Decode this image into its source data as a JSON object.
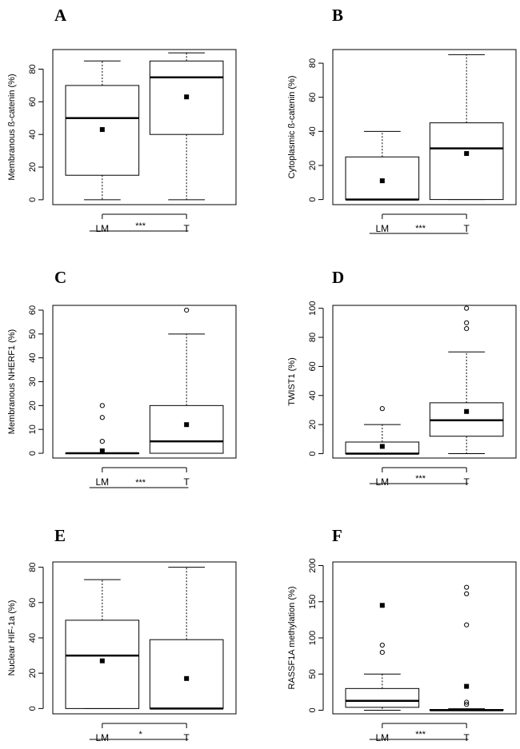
{
  "chart_data": [
    {
      "type": "box",
      "panel": "A",
      "ylabel": "Membranous ß-catenin (%)",
      "yticks": [
        0,
        20,
        40,
        60,
        80
      ],
      "ylim": [
        -3,
        92
      ],
      "categories": [
        "LM",
        "T"
      ],
      "boxes": [
        {
          "name": "LM",
          "whisker_low": 0,
          "q1": 15,
          "median": 50,
          "q3": 70,
          "whisker_high": 85,
          "mean": 43,
          "outliers": []
        },
        {
          "name": "T",
          "whisker_low": 0,
          "q1": 40,
          "median": 75,
          "q3": 85,
          "whisker_high": 90,
          "mean": 63,
          "outliers": []
        }
      ],
      "significance": "***"
    },
    {
      "type": "box",
      "panel": "B",
      "ylabel": "Cytoplasmic ß-catenin (%)",
      "yticks": [
        0,
        20,
        40,
        60,
        80
      ],
      "ylim": [
        -3,
        88
      ],
      "categories": [
        "LM",
        "T"
      ],
      "boxes": [
        {
          "name": "LM",
          "whisker_low": 0,
          "q1": 0,
          "median": 0,
          "q3": 25,
          "whisker_high": 40,
          "mean": 11,
          "outliers": []
        },
        {
          "name": "T",
          "whisker_low": 0,
          "q1": 0,
          "median": 30,
          "q3": 45,
          "whisker_high": 85,
          "mean": 27,
          "outliers": []
        }
      ],
      "significance": "***"
    },
    {
      "type": "box",
      "panel": "C",
      "ylabel": "Membranous NHERF1 (%)",
      "yticks": [
        0,
        10,
        20,
        30,
        40,
        50,
        60
      ],
      "ylim": [
        -2,
        62
      ],
      "categories": [
        "LM",
        "T"
      ],
      "boxes": [
        {
          "name": "LM",
          "whisker_low": 0,
          "q1": 0,
          "median": 0,
          "q3": 0,
          "whisker_high": 0,
          "mean": 1,
          "outliers": [
            5,
            15,
            20
          ]
        },
        {
          "name": "T",
          "whisker_low": 0,
          "q1": 0,
          "median": 5,
          "q3": 20,
          "whisker_high": 50,
          "mean": 12,
          "outliers": [
            60
          ]
        }
      ],
      "significance": "***"
    },
    {
      "type": "box",
      "panel": "D",
      "ylabel": "TWIST1 (%)",
      "yticks": [
        0,
        20,
        40,
        60,
        80,
        100
      ],
      "ylim": [
        -3,
        102
      ],
      "categories": [
        "LM",
        "T"
      ],
      "boxes": [
        {
          "name": "LM",
          "whisker_low": 0,
          "q1": 0,
          "median": 0,
          "q3": 8,
          "whisker_high": 20,
          "mean": 5,
          "outliers": [
            31
          ]
        },
        {
          "name": "T",
          "whisker_low": 0,
          "q1": 12,
          "median": 23,
          "q3": 35,
          "whisker_high": 70,
          "mean": 29,
          "outliers": [
            86,
            90,
            100
          ]
        }
      ],
      "significance": "***"
    },
    {
      "type": "box",
      "panel": "E",
      "ylabel": "Nuclear HIF-1a (%)",
      "yticks": [
        0,
        20,
        40,
        60,
        80
      ],
      "ylim": [
        -3,
        83
      ],
      "categories": [
        "LM",
        "T"
      ],
      "boxes": [
        {
          "name": "LM",
          "whisker_low": 0,
          "q1": 0,
          "median": 30,
          "q3": 50,
          "whisker_high": 73,
          "mean": 27,
          "outliers": []
        },
        {
          "name": "T",
          "whisker_low": 0,
          "q1": 0,
          "median": 0,
          "q3": 39,
          "whisker_high": 80,
          "mean": 17,
          "outliers": []
        }
      ],
      "significance": "*"
    },
    {
      "type": "box",
      "panel": "F",
      "ylabel": "RASSF1A methylation (%)",
      "yticks": [
        0,
        50,
        100,
        150,
        200
      ],
      "ylim": [
        -5,
        205
      ],
      "categories": [
        "LM",
        "T"
      ],
      "boxes": [
        {
          "name": "LM",
          "whisker_low": 0,
          "q1": 4,
          "median": 13,
          "q3": 30,
          "whisker_high": 50,
          "mean": 145,
          "outliers": [
            80,
            90
          ]
        },
        {
          "name": "T",
          "whisker_low": 0,
          "q1": 0,
          "median": 0,
          "q3": 1,
          "whisker_high": 2,
          "mean": 33,
          "outliers": [
            8,
            11,
            118,
            161,
            170
          ]
        }
      ],
      "significance": "***"
    }
  ]
}
